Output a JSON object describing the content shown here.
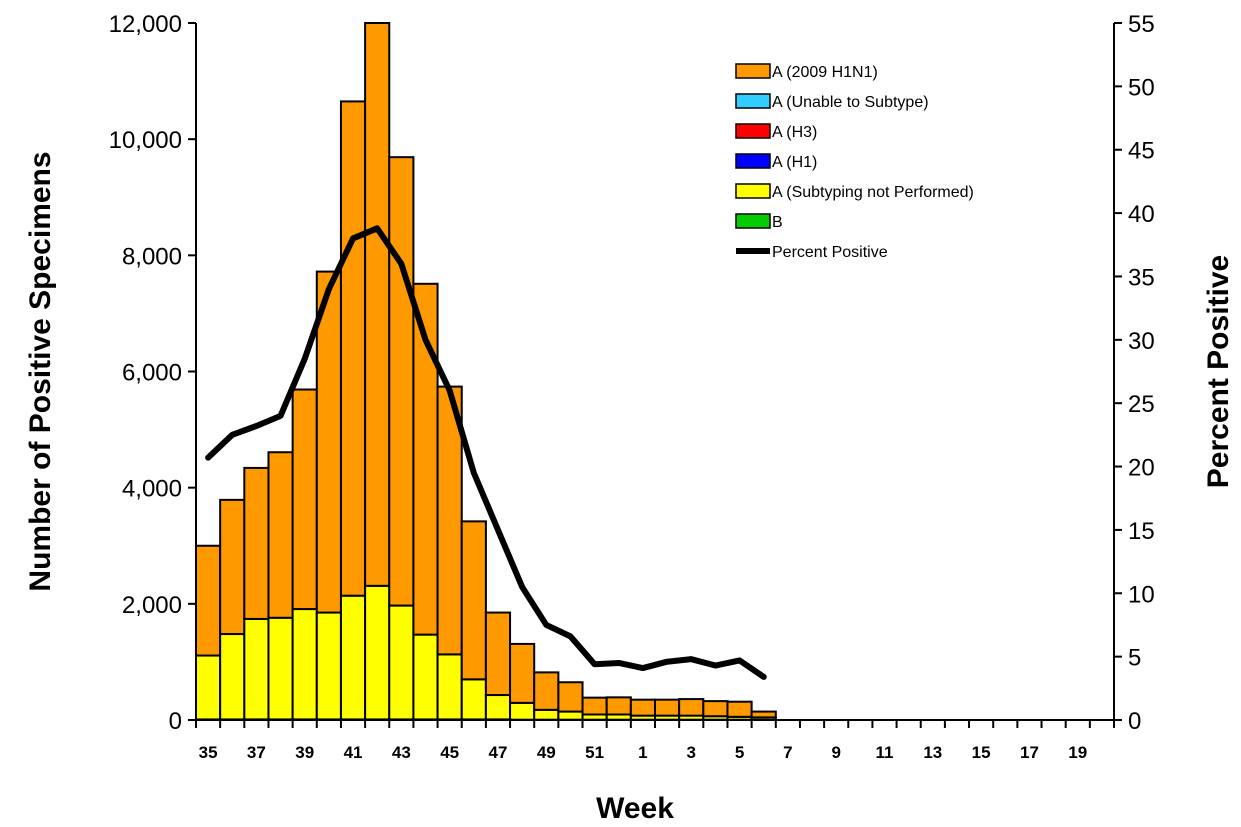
{
  "chart_data": {
    "type": "bar",
    "stacked": true,
    "xlabel": "Week",
    "ylabel": "Number of Positive Specimens",
    "y2label": "Percent Positive",
    "ylim": [
      0,
      12000
    ],
    "y2lim": [
      0,
      55
    ],
    "yticks": [
      "0",
      "2,000",
      "4,000",
      "6,000",
      "8,000",
      "10,000",
      "12,000"
    ],
    "y2ticks": [
      "0",
      "5",
      "10",
      "15",
      "20",
      "25",
      "30",
      "35",
      "40",
      "45",
      "50",
      "55"
    ],
    "categories": [
      "35",
      "36",
      "37",
      "38",
      "39",
      "40",
      "41",
      "42",
      "43",
      "44",
      "45",
      "46",
      "47",
      "48",
      "49",
      "50",
      "51",
      "52",
      "1",
      "2",
      "3",
      "4",
      "5",
      "6",
      "7",
      "8",
      "9",
      "10",
      "11",
      "12",
      "13",
      "14",
      "15",
      "16",
      "17",
      "18",
      "19",
      "20"
    ],
    "xtick_labels": [
      "35",
      "",
      "37",
      "",
      "39",
      "",
      "41",
      "",
      "43",
      "",
      "45",
      "",
      "47",
      "",
      "49",
      "",
      "51",
      "",
      "1",
      "",
      "3",
      "",
      "5",
      "",
      "7",
      "",
      "9",
      "",
      "11",
      "",
      "13",
      "",
      "15",
      "",
      "17",
      "",
      "19",
      ""
    ],
    "grid": false,
    "legend_position": "top-right",
    "series": [
      {
        "name": "B",
        "color": "#00cc00",
        "values": [
          10,
          10,
          10,
          10,
          10,
          10,
          10,
          10,
          10,
          10,
          10,
          10,
          10,
          5,
          5,
          5,
          5,
          5,
          5,
          5,
          5,
          5,
          5,
          5,
          0,
          0,
          0,
          0,
          0,
          0,
          0,
          0,
          0,
          0,
          0,
          0,
          0,
          0
        ]
      },
      {
        "name": "A (Subtyping not Performed)",
        "color": "#ffff00",
        "values": [
          1100,
          1470,
          1730,
          1750,
          1900,
          1840,
          2130,
          2300,
          1960,
          1460,
          1120,
          690,
          420,
          290,
          170,
          140,
          90,
          90,
          70,
          70,
          70,
          60,
          50,
          40,
          0,
          0,
          0,
          0,
          0,
          0,
          0,
          0,
          0,
          0,
          0,
          0,
          0,
          0
        ]
      },
      {
        "name": "A (H1)",
        "color": "#0000ff",
        "values": [
          0,
          0,
          0,
          0,
          0,
          0,
          0,
          0,
          0,
          0,
          0,
          0,
          0,
          0,
          0,
          0,
          0,
          0,
          0,
          0,
          0,
          0,
          0,
          0,
          0,
          0,
          0,
          0,
          0,
          0,
          0,
          0,
          0,
          0,
          0,
          0,
          0,
          0
        ]
      },
      {
        "name": "A (H3)",
        "color": "#ff0000",
        "values": [
          0,
          0,
          0,
          0,
          0,
          0,
          0,
          0,
          0,
          0,
          0,
          0,
          0,
          0,
          0,
          0,
          0,
          0,
          0,
          0,
          0,
          0,
          0,
          0,
          0,
          0,
          0,
          0,
          0,
          0,
          0,
          0,
          0,
          0,
          0,
          0,
          0,
          0
        ]
      },
      {
        "name": "A (Unable to Subtype)",
        "color": "#33ccff",
        "values": [
          0,
          0,
          0,
          0,
          0,
          0,
          0,
          0,
          0,
          0,
          0,
          0,
          0,
          0,
          0,
          0,
          0,
          0,
          0,
          0,
          0,
          0,
          0,
          0,
          0,
          0,
          0,
          0,
          0,
          0,
          0,
          0,
          0,
          0,
          0,
          0,
          0,
          0
        ]
      },
      {
        "name": "A (2009 H1N1)",
        "color": "#ff9900",
        "values": [
          1890,
          2310,
          2600,
          2850,
          3780,
          5870,
          8510,
          9690,
          7720,
          6040,
          4610,
          2720,
          1420,
          1015,
          645,
          505,
          290,
          295,
          275,
          275,
          285,
          260,
          260,
          100,
          0,
          0,
          0,
          0,
          0,
          0,
          0,
          0,
          0,
          0,
          0,
          0,
          0,
          0
        ]
      }
    ],
    "legend_order": [
      "A (2009 H1N1)",
      "A (Unable to Subtype)",
      "A (H3)",
      "A (H1)",
      "A (Subtyping not Performed)",
      "B",
      "Percent Positive"
    ],
    "line_series": {
      "name": "Percent Positive",
      "color": "#000000",
      "axis": "right",
      "values": [
        20.7,
        22.5,
        23.2,
        24.0,
        28.5,
        34.0,
        38.0,
        38.8,
        36.0,
        30.0,
        26.0,
        19.5,
        15.0,
        10.5,
        7.5,
        6.6,
        4.4,
        4.5,
        4.1,
        4.6,
        4.8,
        4.3,
        4.7,
        3.4
      ]
    }
  }
}
